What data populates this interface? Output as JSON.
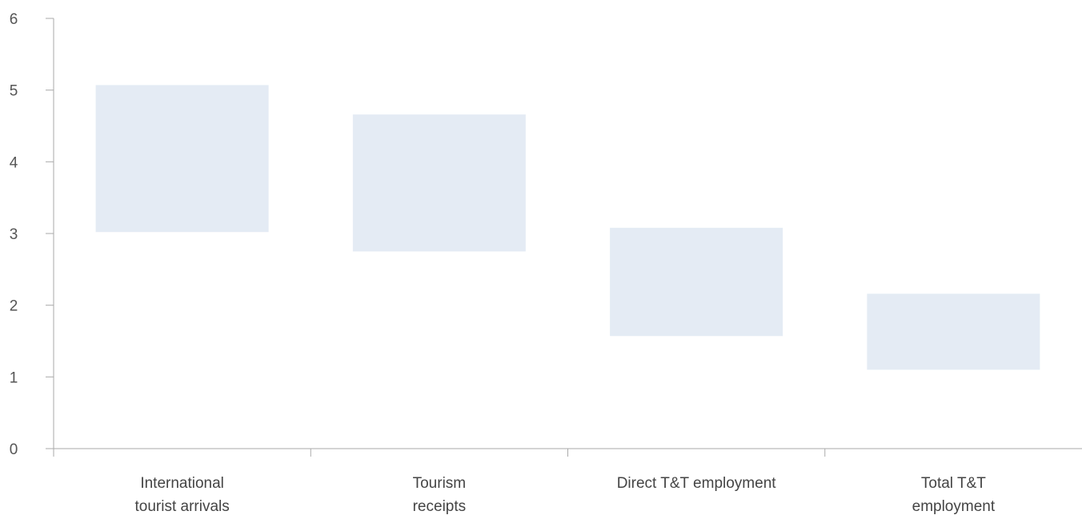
{
  "chart_data": {
    "type": "bar",
    "subtype": "floating-range",
    "categories": [
      [
        "International",
        "tourist arrivals"
      ],
      [
        "Tourism",
        "receipts"
      ],
      [
        "Direct T&T employment"
      ],
      [
        "Total T&T",
        "employment"
      ]
    ],
    "ranges": [
      {
        "low": 3.02,
        "high": 5.07
      },
      {
        "low": 2.75,
        "high": 4.66
      },
      {
        "low": 1.57,
        "high": 3.08
      },
      {
        "low": 1.1,
        "high": 2.16
      }
    ],
    "yticks": [
      "0",
      "1",
      "2",
      "3",
      "4",
      "5",
      "6"
    ],
    "ylim": [
      0,
      6
    ],
    "grid": false,
    "bar_color": "#e4ebf4",
    "axis_color": "#aaaaaa"
  }
}
